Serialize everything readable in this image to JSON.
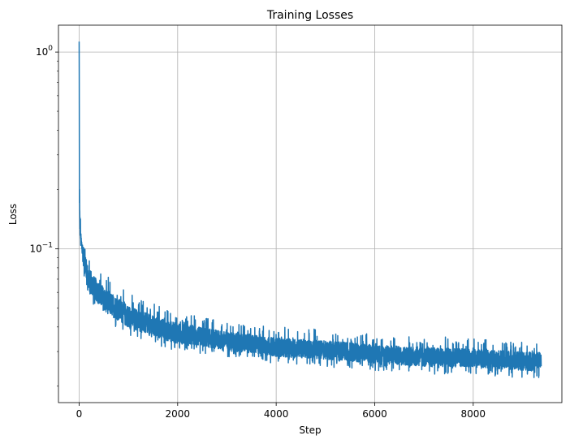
{
  "chart_data": {
    "type": "line",
    "title": "Training Losses",
    "xlabel": "Step",
    "ylabel": "Loss",
    "yscale": "log",
    "grid": true,
    "xlim": [
      -420,
      9800
    ],
    "ylim": [
      0.0165,
      1.37
    ],
    "xticks": [
      {
        "value": 0,
        "label": "0"
      },
      {
        "value": 2000,
        "label": "2000"
      },
      {
        "value": 4000,
        "label": "4000"
      },
      {
        "value": 6000,
        "label": "6000"
      },
      {
        "value": 8000,
        "label": "8000"
      }
    ],
    "yticks": [
      {
        "value": 1,
        "base": "10",
        "exp": "0"
      },
      {
        "value": 0.1,
        "base": "10",
        "exp": "−1"
      }
    ],
    "series": [
      {
        "color": "#1f77b4",
        "steps": 9380,
        "envelope_x": [
          0,
          5,
          10,
          30,
          100,
          200,
          500,
          1000,
          1500,
          2000,
          3000,
          4000,
          5000,
          6000,
          7000,
          8000,
          9000,
          9380
        ],
        "upper": [
          1.13,
          0.5,
          0.2,
          0.135,
          0.115,
          0.09,
          0.075,
          0.06,
          0.053,
          0.048,
          0.043,
          0.04,
          0.039,
          0.037,
          0.036,
          0.035,
          0.034,
          0.034
        ],
        "lower": [
          0.3,
          0.15,
          0.115,
          0.095,
          0.07,
          0.055,
          0.043,
          0.036,
          0.032,
          0.03,
          0.028,
          0.026,
          0.025,
          0.024,
          0.023,
          0.023,
          0.022,
          0.022
        ]
      }
    ]
  }
}
